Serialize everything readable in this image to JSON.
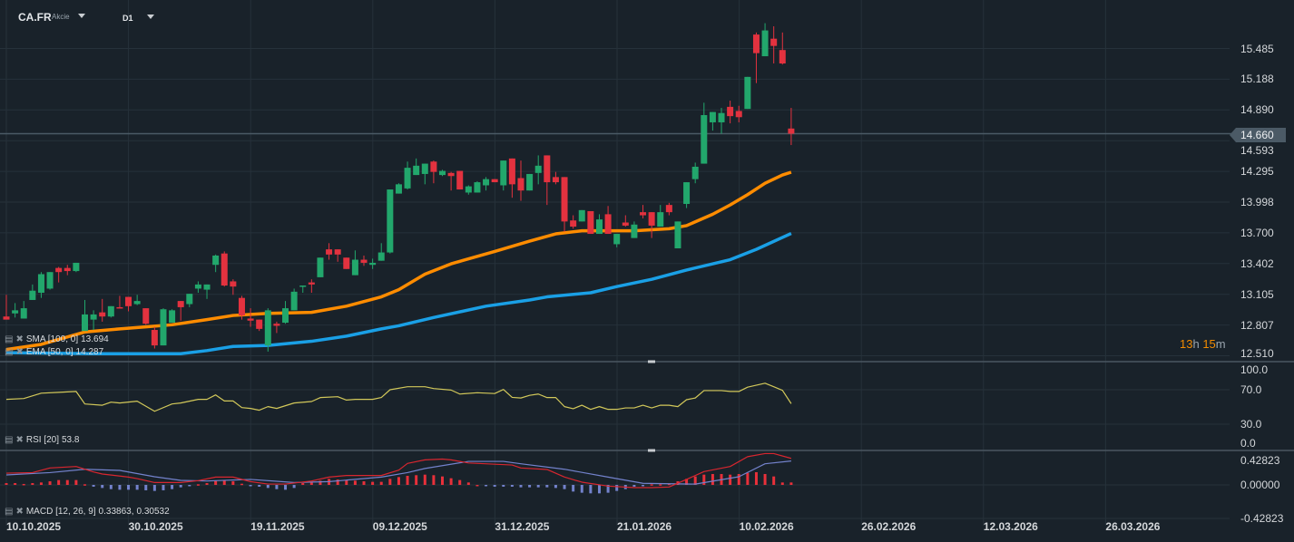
{
  "header": {
    "symbol": "CA.FR",
    "asset_type": "Akcie",
    "timeframe": "D1"
  },
  "colors": {
    "background": "#19222a",
    "grid": "#26313a",
    "up": "#22a76c",
    "down": "#e3323f",
    "ema": "#ff8c00",
    "sma": "#1aa0e6",
    "rsi": "#d2c85a",
    "macd": "#d8262f",
    "signal": "#7382cc",
    "hist_pos": "#e8303a",
    "hist_neg": "#7382cc",
    "separator": "#4a5661",
    "price_line": "#4b5a66"
  },
  "price_axis": {
    "labels": [
      "15.485",
      "15.188",
      "14.890",
      "14.593",
      "14.295",
      "13.998",
      "13.700",
      "13.402",
      "13.105",
      "12.807",
      "12.510"
    ],
    "current_price": "14.660"
  },
  "countdown": {
    "hours": "13",
    "h_unit": "h",
    "minutes": "15",
    "m_unit": "m"
  },
  "indicators": {
    "sma": {
      "label": "SMA [100,  0]",
      "value": "13.694"
    },
    "ema": {
      "label": "EMA [50,  0]",
      "value": "14.287"
    },
    "rsi": {
      "label": "RSI [20]",
      "value": "53.8",
      "axis": [
        "100.0",
        "70.0",
        "30.0",
        "0.0"
      ]
    },
    "macd": {
      "label": "MACD [12,  26, 9]",
      "value": "0.33863,",
      "signal_value": "0.30532",
      "axis": [
        "0.42823",
        "0.00000",
        "-0.42823"
      ]
    }
  },
  "x_axis": {
    "labels": [
      "10.10.2025",
      "30.10.2025",
      "19.11.2025",
      "09.12.2025",
      "31.12.2025",
      "21.01.2026",
      "10.02.2026",
      "26.02.2026",
      "12.03.2026",
      "26.03.2026"
    ]
  },
  "chart_data": {
    "type": "candlestick",
    "ohlc": [
      [
        12.89,
        13.1,
        12.86,
        12.86
      ],
      [
        12.92,
        13.02,
        12.88,
        12.95
      ],
      [
        12.87,
        13.04,
        12.87,
        12.97
      ],
      [
        13.05,
        13.2,
        13.05,
        13.14
      ],
      [
        13.12,
        13.32,
        13.07,
        13.3
      ],
      [
        13.16,
        13.32,
        13.15,
        13.32
      ],
      [
        13.36,
        13.37,
        13.22,
        13.32
      ],
      [
        13.36,
        13.39,
        13.29,
        13.33
      ],
      [
        13.33,
        13.41,
        13.32,
        13.41
      ],
      [
        12.75,
        13.05,
        12.75,
        12.91
      ],
      [
        12.86,
        12.95,
        12.76,
        12.91
      ],
      [
        12.93,
        13.06,
        12.84,
        12.89
      ],
      [
        12.89,
        12.99,
        12.88,
        12.99
      ],
      [
        12.98,
        13.09,
        12.97,
        12.97
      ],
      [
        13.08,
        13.08,
        12.94,
        12.99
      ],
      [
        13.01,
        13.1,
        13.0,
        13.04
      ],
      [
        12.97,
        12.97,
        12.81,
        12.82
      ],
      [
        12.76,
        12.79,
        12.58,
        12.61
      ],
      [
        12.61,
        12.97,
        12.61,
        12.96
      ],
      [
        12.83,
        12.96,
        12.83,
        12.95
      ],
      [
        13.04,
        13.04,
        12.85,
        12.98
      ],
      [
        13.01,
        13.11,
        12.98,
        13.11
      ],
      [
        13.16,
        13.23,
        13.12,
        13.2
      ],
      [
        13.15,
        13.2,
        13.06,
        13.2
      ],
      [
        13.39,
        13.49,
        13.32,
        13.48
      ],
      [
        13.5,
        13.52,
        13.18,
        13.19
      ],
      [
        13.23,
        13.25,
        13.1,
        13.18
      ],
      [
        13.07,
        13.09,
        12.86,
        12.9
      ],
      [
        12.87,
        12.97,
        12.79,
        12.85
      ],
      [
        12.86,
        12.86,
        12.75,
        12.77
      ],
      [
        12.61,
        12.97,
        12.55,
        12.95
      ],
      [
        12.82,
        12.84,
        12.73,
        12.8
      ],
      [
        12.83,
        13.04,
        12.82,
        12.97
      ],
      [
        12.95,
        13.16,
        12.95,
        13.13
      ],
      [
        13.18,
        13.19,
        13.12,
        13.19
      ],
      [
        13.22,
        13.25,
        13.12,
        13.2
      ],
      [
        13.27,
        13.46,
        13.27,
        13.46
      ],
      [
        13.54,
        13.6,
        13.44,
        13.49
      ],
      [
        13.54,
        13.54,
        13.42,
        13.49
      ],
      [
        13.46,
        13.46,
        13.35,
        13.35
      ],
      [
        13.29,
        13.53,
        13.29,
        13.44
      ],
      [
        13.44,
        13.48,
        13.38,
        13.41
      ],
      [
        13.39,
        13.45,
        13.35,
        13.41
      ],
      [
        13.43,
        13.6,
        13.43,
        13.51
      ],
      [
        13.51,
        14.12,
        13.5,
        14.12
      ],
      [
        14.08,
        14.18,
        14.08,
        14.17
      ],
      [
        14.13,
        14.39,
        14.12,
        14.33
      ],
      [
        14.26,
        14.42,
        14.26,
        14.35
      ],
      [
        14.27,
        14.37,
        14.17,
        14.37
      ],
      [
        14.39,
        14.4,
        14.18,
        14.29
      ],
      [
        14.26,
        14.31,
        14.25,
        14.3
      ],
      [
        14.28,
        14.29,
        14.11,
        14.25
      ],
      [
        14.3,
        14.3,
        14.12,
        14.12
      ],
      [
        14.09,
        14.16,
        14.07,
        14.15
      ],
      [
        14.09,
        14.2,
        14.09,
        14.19
      ],
      [
        14.16,
        14.24,
        14.11,
        14.22
      ],
      [
        14.22,
        14.22,
        14.19,
        14.19
      ],
      [
        14.16,
        14.4,
        14.11,
        14.4
      ],
      [
        14.42,
        14.42,
        14.04,
        14.17
      ],
      [
        14.23,
        14.4,
        14.01,
        14.11
      ],
      [
        14.11,
        14.27,
        14.11,
        14.27
      ],
      [
        14.28,
        14.45,
        14.17,
        14.35
      ],
      [
        14.45,
        14.45,
        13.97,
        14.19
      ],
      [
        14.24,
        14.29,
        14.17,
        14.19
      ],
      [
        14.24,
        14.24,
        13.71,
        13.81
      ],
      [
        13.82,
        13.87,
        13.74,
        13.76
      ],
      [
        13.81,
        13.92,
        13.81,
        13.92
      ],
      [
        13.91,
        13.91,
        13.69,
        13.69
      ],
      [
        13.69,
        13.88,
        13.69,
        13.83
      ],
      [
        13.88,
        13.96,
        13.69,
        13.69
      ],
      [
        13.59,
        13.69,
        13.56,
        13.69
      ],
      [
        13.8,
        13.87,
        13.76,
        13.77
      ],
      [
        13.65,
        13.81,
        13.65,
        13.78
      ],
      [
        13.9,
        13.97,
        13.84,
        13.87
      ],
      [
        13.9,
        13.9,
        13.65,
        13.77
      ],
      [
        13.76,
        13.97,
        13.76,
        13.9
      ],
      [
        13.97,
        13.99,
        13.87,
        13.9
      ],
      [
        13.55,
        13.81,
        13.55,
        13.81
      ],
      [
        13.98,
        14.19,
        13.94,
        14.19
      ],
      [
        14.22,
        14.38,
        14.18,
        14.34
      ],
      [
        14.37,
        14.96,
        14.37,
        14.84
      ],
      [
        14.77,
        14.87,
        14.69,
        14.87
      ],
      [
        14.77,
        14.91,
        14.66,
        14.86
      ],
      [
        14.92,
        14.98,
        14.76,
        14.83
      ],
      [
        14.88,
        14.93,
        14.77,
        14.82
      ],
      [
        14.9,
        15.21,
        14.9,
        15.21
      ],
      [
        15.62,
        15.64,
        15.15,
        15.44
      ],
      [
        15.41,
        15.73,
        15.41,
        15.66
      ],
      [
        15.58,
        15.7,
        15.34,
        15.51
      ],
      [
        15.47,
        15.64,
        15.33,
        15.34
      ],
      [
        14.71,
        14.91,
        14.55,
        14.66
      ]
    ],
    "ema50": [
      [
        0,
        12.57
      ],
      [
        4,
        12.62
      ],
      [
        9,
        12.74
      ],
      [
        13,
        12.77
      ],
      [
        16,
        12.79
      ],
      [
        19,
        12.81
      ],
      [
        23,
        12.86
      ],
      [
        26,
        12.9
      ],
      [
        30,
        12.92
      ],
      [
        35,
        12.93
      ],
      [
        39,
        12.99
      ],
      [
        43,
        13.08
      ],
      [
        45,
        13.15
      ],
      [
        48,
        13.3
      ],
      [
        51,
        13.4
      ],
      [
        56,
        13.52
      ],
      [
        60,
        13.62
      ],
      [
        63,
        13.69
      ],
      [
        66,
        13.72
      ],
      [
        72,
        13.72
      ],
      [
        76,
        13.74
      ],
      [
        78,
        13.77
      ],
      [
        81,
        13.88
      ],
      [
        83,
        13.97
      ],
      [
        85,
        14.07
      ],
      [
        87,
        14.18
      ],
      [
        89,
        14.26
      ],
      [
        90,
        14.287
      ]
    ],
    "sma100": [
      [
        0,
        12.54
      ],
      [
        10,
        12.53
      ],
      [
        20,
        12.53
      ],
      [
        23,
        12.56
      ],
      [
        26,
        12.6
      ],
      [
        30,
        12.61
      ],
      [
        35,
        12.65
      ],
      [
        39,
        12.7
      ],
      [
        43,
        12.77
      ],
      [
        45,
        12.8
      ],
      [
        49,
        12.88
      ],
      [
        55,
        12.99
      ],
      [
        60,
        13.05
      ],
      [
        62,
        13.08
      ],
      [
        67,
        13.12
      ],
      [
        70,
        13.18
      ],
      [
        74,
        13.25
      ],
      [
        78,
        13.34
      ],
      [
        83,
        13.44
      ],
      [
        86,
        13.54
      ],
      [
        90,
        13.694
      ]
    ],
    "rsi": [
      [
        0,
        58.8
      ],
      [
        2,
        59.8
      ],
      [
        4,
        66
      ],
      [
        6,
        67
      ],
      [
        8,
        68
      ],
      [
        9,
        53.5
      ],
      [
        11,
        52
      ],
      [
        12,
        55.6
      ],
      [
        13,
        54.6
      ],
      [
        15,
        56.7
      ],
      [
        17,
        45
      ],
      [
        19,
        53.5
      ],
      [
        20,
        54.6
      ],
      [
        22,
        58.8
      ],
      [
        23,
        58.8
      ],
      [
        24,
        64
      ],
      [
        25,
        57
      ],
      [
        26,
        57
      ],
      [
        27,
        49.3
      ],
      [
        28,
        48.3
      ],
      [
        29,
        46.2
      ],
      [
        30,
        50.4
      ],
      [
        31,
        48.3
      ],
      [
        33,
        54.6
      ],
      [
        35,
        56.3
      ],
      [
        36,
        60.9
      ],
      [
        38,
        61.9
      ],
      [
        39,
        58
      ],
      [
        40,
        58.8
      ],
      [
        42,
        58.8
      ],
      [
        43,
        61
      ],
      [
        44,
        70
      ],
      [
        46,
        73.5
      ],
      [
        48,
        73.5
      ],
      [
        49,
        71.4
      ],
      [
        51,
        69.6
      ],
      [
        52,
        65
      ],
      [
        54,
        66.5
      ],
      [
        56,
        65.6
      ],
      [
        57,
        70.3
      ],
      [
        58,
        61.1
      ],
      [
        59,
        60.4
      ],
      [
        60,
        63.5
      ],
      [
        61,
        65
      ],
      [
        62,
        60.9
      ],
      [
        63,
        60.9
      ],
      [
        64,
        50.4
      ],
      [
        65,
        48
      ],
      [
        66,
        52
      ],
      [
        67,
        47.2
      ],
      [
        68,
        50.4
      ],
      [
        69,
        47.2
      ],
      [
        70,
        47.2
      ],
      [
        71,
        48.9
      ],
      [
        72,
        48.9
      ],
      [
        73,
        52
      ],
      [
        74,
        48.9
      ],
      [
        75,
        52
      ],
      [
        76,
        52
      ],
      [
        77,
        50.4
      ],
      [
        78,
        58.4
      ],
      [
        79,
        60.4
      ],
      [
        80,
        69
      ],
      [
        82,
        69
      ],
      [
        83,
        68
      ],
      [
        84,
        68
      ],
      [
        85,
        73
      ],
      [
        87,
        77.6
      ],
      [
        88,
        73.5
      ],
      [
        89,
        69.3
      ],
      [
        90,
        53.8
      ]
    ],
    "macd": [
      [
        0,
        0.15
      ],
      [
        3,
        0.157
      ],
      [
        5,
        0.216
      ],
      [
        8,
        0.235
      ],
      [
        10,
        0.166
      ],
      [
        11,
        0.139
      ],
      [
        14,
        0.1
      ],
      [
        15,
        0.08
      ],
      [
        17,
        0.03
      ],
      [
        20,
        0.03
      ],
      [
        22,
        0.054
      ],
      [
        24,
        0.1
      ],
      [
        26,
        0.1
      ],
      [
        28,
        0.042
      ],
      [
        30,
        0.011
      ],
      [
        32,
        0.011
      ],
      [
        35,
        0.05
      ],
      [
        37,
        0.1
      ],
      [
        39,
        0.12
      ],
      [
        43,
        0.12
      ],
      [
        45,
        0.189
      ],
      [
        46,
        0.274
      ],
      [
        48,
        0.32
      ],
      [
        50,
        0.33
      ],
      [
        51,
        0.32
      ],
      [
        53,
        0.28
      ],
      [
        58,
        0.254
      ],
      [
        59,
        0.216
      ],
      [
        62,
        0.197
      ],
      [
        64,
        0.1
      ],
      [
        66,
        0.035
      ],
      [
        69,
        -0.015
      ],
      [
        72,
        -0.035
      ],
      [
        74,
        -0.035
      ],
      [
        76,
        -0.027
      ],
      [
        78,
        0.07
      ],
      [
        80,
        0.17
      ],
      [
        83,
        0.235
      ],
      [
        85,
        0.36
      ],
      [
        87,
        0.4
      ],
      [
        88,
        0.4
      ],
      [
        90,
        0.33863
      ]
    ],
    "signal": [
      [
        0,
        0.127
      ],
      [
        5,
        0.157
      ],
      [
        9,
        0.2
      ],
      [
        13,
        0.185
      ],
      [
        17,
        0.104
      ],
      [
        20,
        0.058
      ],
      [
        23,
        0.05
      ],
      [
        28,
        0.07
      ],
      [
        33,
        0.03
      ],
      [
        37,
        0.042
      ],
      [
        43,
        0.1
      ],
      [
        46,
        0.157
      ],
      [
        48,
        0.21
      ],
      [
        53,
        0.3
      ],
      [
        57,
        0.3
      ],
      [
        59,
        0.27
      ],
      [
        64,
        0.2
      ],
      [
        69,
        0.1
      ],
      [
        73,
        0.02
      ],
      [
        79,
        0.01
      ],
      [
        84,
        0.104
      ],
      [
        87,
        0.27
      ],
      [
        90,
        0.30532
      ]
    ],
    "histogram": [
      0.023,
      0.023,
      0.012,
      0.023,
      0.031,
      0.046,
      0.062,
      0.062,
      0.062,
      0.008,
      -0.023,
      -0.039,
      -0.054,
      -0.062,
      -0.062,
      -0.062,
      -0.069,
      -0.077,
      -0.069,
      -0.054,
      -0.031,
      -0.015,
      0.008,
      0.023,
      0.054,
      0.054,
      0.046,
      0.015,
      -0.015,
      -0.023,
      -0.039,
      -0.054,
      -0.062,
      -0.039,
      0.023,
      0.039,
      0.054,
      0.077,
      0.069,
      0.062,
      0.054,
      0.046,
      0.039,
      0.039,
      0.077,
      0.1,
      0.116,
      0.124,
      0.131,
      0.124,
      0.108,
      0.085,
      0.062,
      0.031,
      0,
      -0.015,
      -0.023,
      -0.023,
      -0.023,
      -0.031,
      -0.031,
      -0.031,
      -0.031,
      -0.039,
      -0.054,
      -0.085,
      -0.1,
      -0.108,
      -0.108,
      -0.1,
      -0.077,
      -0.054,
      -0.023,
      -0.008,
      0.008,
      0.008,
      0.015,
      0.046,
      0.077,
      0.108,
      0.131,
      0.139,
      0.139,
      0.131,
      0.139,
      0.154,
      0.162,
      0.139,
      0.108,
      0.031,
      0.031
    ],
    "price_range": [
      12.51,
      15.485
    ],
    "rsi_range": [
      0,
      100
    ],
    "macd_range": [
      -0.42823,
      0.42823
    ]
  }
}
